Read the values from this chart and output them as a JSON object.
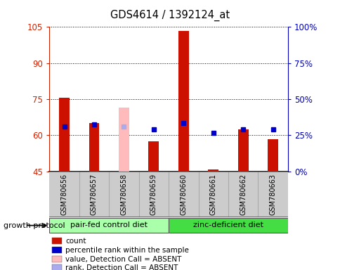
{
  "title": "GDS4614 / 1392124_at",
  "samples": [
    "GSM780656",
    "GSM780657",
    "GSM780658",
    "GSM780659",
    "GSM780660",
    "GSM780661",
    "GSM780662",
    "GSM780663"
  ],
  "bar_bottom": 45,
  "red_bars": [
    75.5,
    65.0,
    null,
    57.5,
    103.5,
    45.8,
    62.5,
    58.5
  ],
  "pink_bars": [
    null,
    null,
    71.5,
    null,
    null,
    null,
    null,
    null
  ],
  "blue_squares": [
    63.5,
    64.5,
    null,
    62.5,
    65.0,
    61.0,
    62.5,
    62.5
  ],
  "lightblue_squares": [
    null,
    null,
    63.5,
    null,
    null,
    null,
    null,
    null
  ],
  "ylim": [
    45,
    105
  ],
  "yticks_left": [
    45,
    60,
    75,
    90,
    105
  ],
  "yticks_right_pos": [
    45,
    60,
    75,
    90,
    105
  ],
  "ytick_labels_right": [
    "0%",
    "25%",
    "50%",
    "75%",
    "100%"
  ],
  "groups": [
    {
      "label": "pair-fed control diet",
      "indices": [
        0,
        1,
        2,
        3
      ],
      "color": "#aaffaa"
    },
    {
      "label": "zinc-deficient diet",
      "indices": [
        4,
        5,
        6,
        7
      ],
      "color": "#44dd44"
    }
  ],
  "group_label": "growth protocol",
  "left_axis_color": "#cc2200",
  "right_axis_color": "#0000bb",
  "bar_width": 0.35,
  "red_bar_color": "#cc1100",
  "pink_bar_color": "#ffbbbb",
  "blue_sq_color": "#0000cc",
  "lightblue_sq_color": "#aaaaee",
  "bg_color": "#ffffff",
  "sample_bg_color": "#cccccc",
  "legend_items": [
    {
      "label": "count",
      "color": "#cc1100"
    },
    {
      "label": "percentile rank within the sample",
      "color": "#0000cc"
    },
    {
      "label": "value, Detection Call = ABSENT",
      "color": "#ffbbbb"
    },
    {
      "label": "rank, Detection Call = ABSENT",
      "color": "#aaaaee"
    }
  ]
}
